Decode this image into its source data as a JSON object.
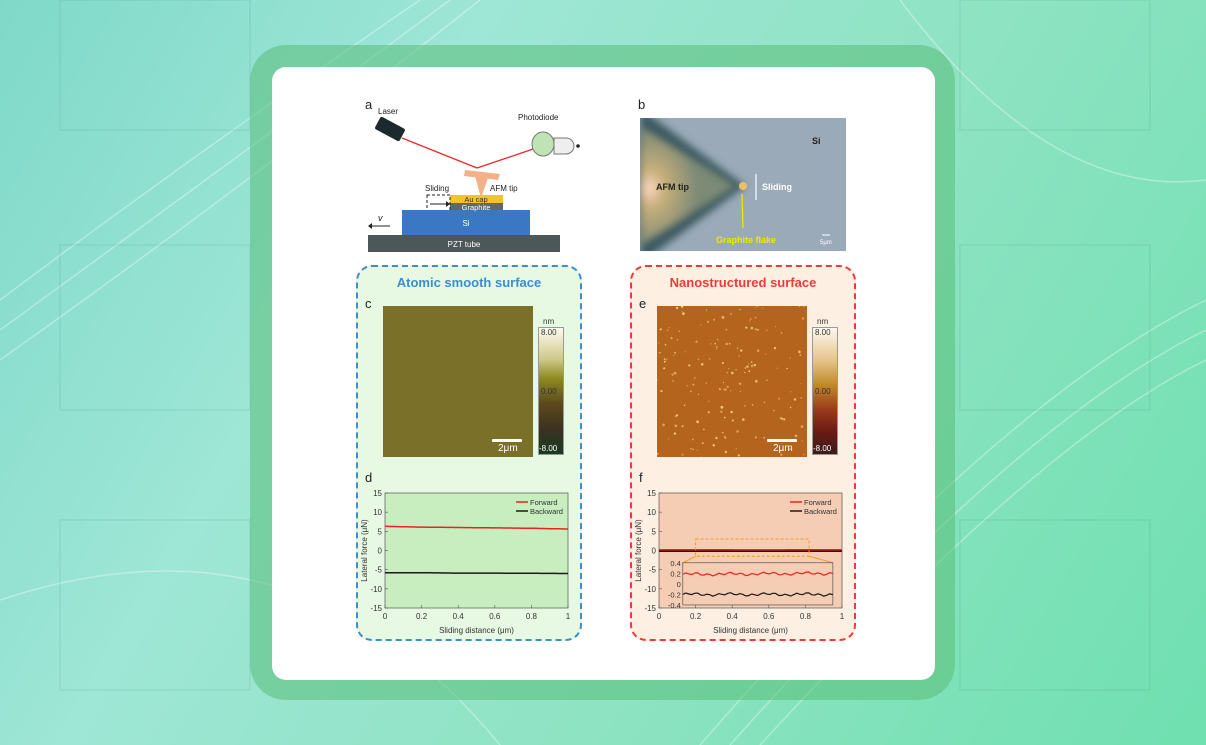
{
  "panels": {
    "a": {
      "label": "a",
      "laser": "Laser",
      "photodiode": "Photodiode",
      "afm_tip": "AFM tip",
      "sliding": "Sliding",
      "au_cap": "Au cap",
      "graphite": "Graphite",
      "si": "Si",
      "pzt": "PZT tube",
      "velocity": "v"
    },
    "b": {
      "label": "b",
      "si": "Si",
      "afm_tip": "AFM tip",
      "sliding": "Sliding",
      "graphite_flake": "Graphite flake",
      "scale": "5μm"
    },
    "c": {
      "label": "c",
      "unit": "nm",
      "max": "8.00",
      "mid": "0.00",
      "min": "-8.00",
      "scale": "2μm"
    },
    "e": {
      "label": "e",
      "unit": "nm",
      "max": "8.00",
      "mid": "0.00",
      "min": "-8.00",
      "scale": "2μm"
    },
    "d": {
      "label": "d"
    },
    "f": {
      "label": "f"
    }
  },
  "boxes": {
    "left_title": "Atomic smooth surface",
    "right_title": "Nanostructured surface"
  },
  "colors": {
    "forward": "#e8231f",
    "backward": "#1a1a1a",
    "left_accent": "#3b8ed0",
    "right_accent": "#f03a3a",
    "inset_highlight": "#f0a020"
  },
  "chart_data": [
    {
      "type": "line",
      "panel": "d",
      "xlabel": "Sliding distance (μm)",
      "ylabel": "Lateral force (μN)",
      "xlim": [
        0,
        1
      ],
      "ylim": [
        -15,
        15
      ],
      "xticks": [
        "0",
        "0.2",
        "0.4",
        "0.6",
        "0.8",
        "1"
      ],
      "yticks": [
        "15",
        "10",
        "5",
        "0",
        "-5",
        "-10",
        "-15"
      ],
      "legend": "top-right",
      "x": [
        0,
        0.2,
        0.4,
        0.6,
        0.8,
        1
      ],
      "series": [
        {
          "name": "Forward",
          "values": [
            6.3,
            6.1,
            6.0,
            5.9,
            5.8,
            5.6
          ]
        },
        {
          "name": "Backward",
          "values": [
            -5.8,
            -5.8,
            -5.9,
            -5.9,
            -5.95,
            -6.0
          ]
        }
      ]
    },
    {
      "type": "line",
      "panel": "f",
      "xlabel": "Sliding distance (μm)",
      "ylabel": "Lateral force (μN)",
      "xlim": [
        0,
        1
      ],
      "ylim": [
        -15,
        15
      ],
      "xticks": [
        "0",
        "0.2",
        "0.4",
        "0.6",
        "0.8",
        "1"
      ],
      "yticks": [
        "15",
        "10",
        "5",
        "0",
        "-5",
        "-10",
        "-15"
      ],
      "legend": "top-right",
      "x": [
        0,
        0.2,
        0.4,
        0.6,
        0.8,
        1
      ],
      "series": [
        {
          "name": "Forward",
          "values": [
            0.18,
            0.19,
            0.17,
            0.16,
            0.18,
            0.2
          ]
        },
        {
          "name": "Backward",
          "values": [
            -0.2,
            -0.17,
            -0.17,
            -0.19,
            -0.18,
            -0.2
          ]
        }
      ],
      "inset": {
        "xrange": [
          0.2,
          0.82
        ],
        "ylim": [
          -0.4,
          0.4
        ],
        "yticks": [
          "0.4",
          "0.2",
          "0",
          "-0.2",
          "-0.4"
        ]
      }
    }
  ]
}
